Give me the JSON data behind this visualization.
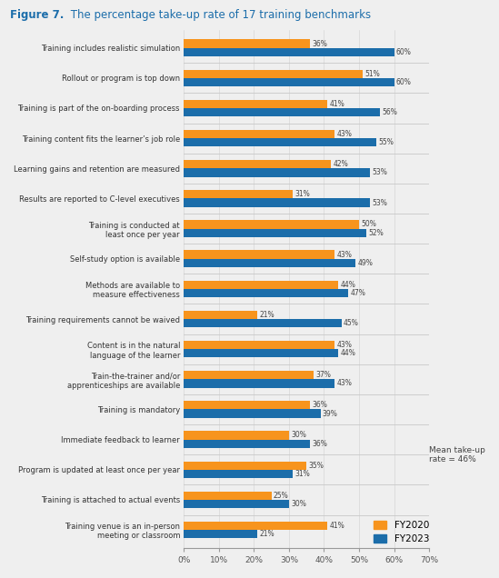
{
  "title_bold": "Figure 7.",
  "title_rest": " The percentage take-up rate of 17 training benchmarks",
  "categories": [
    "Training includes realistic simulation",
    "Rollout or program is top down",
    "Training is part of the on-boarding process",
    "Training content fits the learner’s job role",
    "Learning gains and retention are measured",
    "Results are reported to C-level executives",
    "Training is conducted at\nleast once per year",
    "Self-study option is available",
    "Methods are available to\nmeasure effectiveness",
    "Training requirements cannot be waived",
    "Content is in the natural\nlanguage of the learner",
    "Train-the-trainer and/or\napprenticeships are available",
    "Training is mandatory",
    "Immediate feedback to learner",
    "Program is updated at least once per year",
    "Training is attached to actual events",
    "Training venue is an in-person\nmeeting or classroom"
  ],
  "fy2020": [
    36,
    51,
    41,
    43,
    42,
    31,
    50,
    43,
    44,
    21,
    43,
    37,
    36,
    30,
    35,
    25,
    41
  ],
  "fy2023": [
    60,
    60,
    56,
    55,
    53,
    53,
    52,
    49,
    47,
    45,
    44,
    43,
    39,
    36,
    31,
    30,
    21
  ],
  "color_fy2020": "#F7941D",
  "color_fy2023": "#1B6DAA",
  "bg_color": "#EFEFEF",
  "title_color": "#1B6DAA",
  "annotation_text": "Mean take-up\nrate = 46%",
  "xlim": [
    0,
    70
  ],
  "xticks": [
    0,
    10,
    20,
    30,
    40,
    50,
    60,
    70
  ],
  "xtick_labels": [
    "0%",
    "10%",
    "20%",
    "30%",
    "40%",
    "50%",
    "60%",
    "70%"
  ]
}
